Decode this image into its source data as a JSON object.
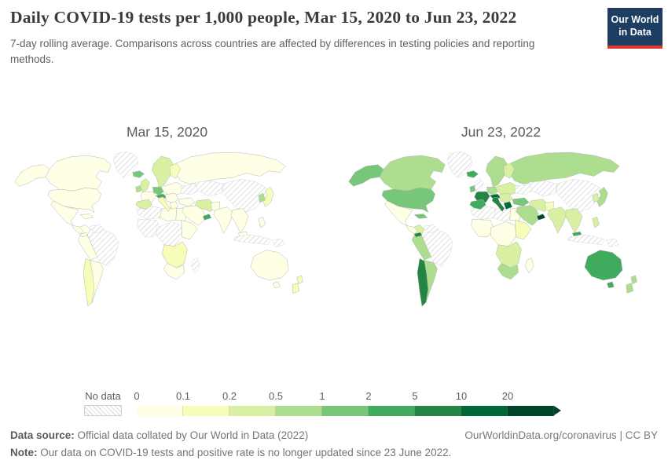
{
  "header": {
    "title": "Daily COVID-19 tests per 1,000 people, Mar 15, 2020 to Jun 23, 2022",
    "subtitle": "7-day rolling average. Comparisons across countries are affected by differences in testing policies and reporting methods.",
    "logo": {
      "line1": "Our World",
      "line2": "in Data",
      "bg_color": "#1d3d63",
      "underline_color": "#d93a2b"
    }
  },
  "legend": {
    "no_data_label": "No data",
    "ticks": [
      "0",
      "0.1",
      "0.2",
      "0.5",
      "1",
      "2",
      "5",
      "10",
      "20"
    ],
    "colors": [
      "#ffffe5",
      "#f7fcb9",
      "#d9f0a3",
      "#addd8e",
      "#78c679",
      "#41ab5d",
      "#238443",
      "#006837",
      "#004529"
    ],
    "no_data_hatch_color": "#dadada"
  },
  "footer": {
    "source_label": "Data source:",
    "source_text": "Official data collated by Our World in Data (2022)",
    "link": "OurWorldinData.org/coronavirus | CC BY",
    "note_label": "Note:",
    "note_text": "Our data on COVID-19 tests and positive rate is no longer updated since 23 June 2022."
  },
  "chart_data": {
    "type": "heatmap",
    "subtype": "choropleth_world_map_comparison",
    "title": "Daily COVID-19 tests per 1,000 people",
    "unit": "daily tests per 1,000 people (7-day rolling average)",
    "legend_position": "bottom",
    "bin_edges": [
      0,
      0.1,
      0.2,
      0.5,
      1,
      2,
      5,
      10,
      20
    ],
    "bin_labels": [
      "0-0.1",
      "0.1-0.2",
      "0.2-0.5",
      "0.5-1",
      "1-2",
      "2-5",
      "5-10",
      "10-20",
      "20+"
    ],
    "no_data_key": "nd",
    "series": [
      {
        "name": "Mar 15, 2020",
        "regions": {
          "russia": 0,
          "canada": 0,
          "usa": 0,
          "alaska": 0,
          "greenland": "nd",
          "mexico": 0,
          "brazil": "nd",
          "argentina": 0,
          "chile": 1,
          "peru_bolivia": 0,
          "colombia": 0,
          "venezuela": "nd",
          "central_america": 0,
          "panama": 0,
          "cuba": 0,
          "north_africa_west": "nd",
          "libya": 0,
          "egypt": 0,
          "west_africa": "nd",
          "central_africa": "nd",
          "east_africa": 0,
          "southern_africa": 1,
          "south_africa": 0,
          "madagascar": "nd",
          "scandinavia": 2,
          "finland": 1,
          "east_europe": 0,
          "ukraine": "nd",
          "germany": 4,
          "france": 0,
          "alpine": 5,
          "iberia": 2,
          "italy": 1,
          "balkans": 0,
          "greece": 0,
          "turkey": 0,
          "uk": 2,
          "ireland": 3,
          "iceland": 4,
          "central_asia": "nd",
          "china": "nd",
          "saudi": 0,
          "iran": 2,
          "uae": 5,
          "pakistan": 0,
          "india": 0,
          "se_asia": 0,
          "malaysia": 0,
          "japan": 1,
          "korea": 3,
          "philippines": 0,
          "indonesia": "nd",
          "papua": "nd",
          "australia": 0,
          "tasmania": 0,
          "new_zealand": 1
        }
      },
      {
        "name": "Jun 23, 2022",
        "regions": {
          "russia": 3,
          "canada": 3,
          "usa": 4,
          "alaska": 4,
          "greenland": "nd",
          "mexico": 0,
          "brazil": "nd",
          "argentina": 3,
          "chile": 6,
          "peru_bolivia": 3,
          "colombia": 2,
          "venezuela": "nd",
          "central_america": 0,
          "panama": 6,
          "cuba": 4,
          "north_africa_west": "nd",
          "libya": "nd",
          "egypt": 0,
          "west_africa": 0,
          "central_africa": 0,
          "east_africa": 1,
          "southern_africa": 2,
          "south_africa": 3,
          "madagascar": 0,
          "scandinavia": 3,
          "finland": 2,
          "east_europe": 2,
          "ukraine": "nd",
          "germany": 3,
          "france": 6,
          "alpine": 7,
          "iberia": 5,
          "italy": 6,
          "balkans": 2,
          "greece": 7,
          "turkey": 4,
          "uk": "nd",
          "ireland": 4,
          "iceland": 5,
          "central_asia": "nd",
          "china": "nd",
          "saudi": 3,
          "iran": 2,
          "uae": 8,
          "pakistan": 1,
          "india": 2,
          "se_asia": 2,
          "malaysia": 5,
          "japan": 3,
          "korea": 2,
          "philippines": 2,
          "indonesia": "nd",
          "papua": "nd",
          "australia": 5,
          "tasmania": 5,
          "new_zealand": 3
        }
      }
    ]
  }
}
